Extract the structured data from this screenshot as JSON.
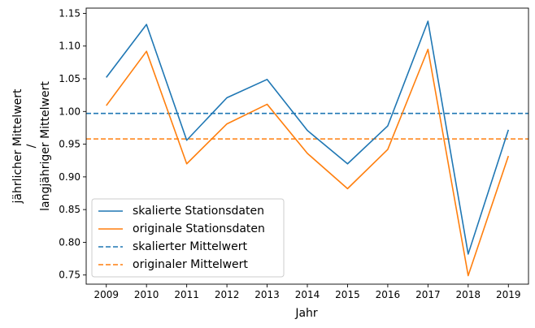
{
  "chart_data": {
    "type": "line",
    "xlabel": "Jahr",
    "ylabel_lines": [
      "jährlicher Mittelwert",
      "/",
      "langjähriger Mittelwert"
    ],
    "x": [
      2009,
      2010,
      2011,
      2012,
      2013,
      2014,
      2015,
      2016,
      2017,
      2018,
      2019
    ],
    "x_ticks": [
      "2009",
      "2010",
      "2011",
      "2012",
      "2013",
      "2014",
      "2015",
      "2016",
      "2017",
      "2018",
      "2019"
    ],
    "y_ticks": [
      "0.75",
      "0.80",
      "0.85",
      "0.90",
      "0.95",
      "1.00",
      "1.05",
      "1.10",
      "1.15"
    ],
    "ylim": [
      0.736,
      1.158
    ],
    "xlim": [
      2008.5,
      2019.5
    ],
    "grid": false,
    "legend_position": "lower-left",
    "series": [
      {
        "name": "skalierte Stationsdaten",
        "style": "solid",
        "color": "#1f77b4",
        "values": [
          1.052,
          1.133,
          0.956,
          1.021,
          1.049,
          0.971,
          0.92,
          0.978,
          1.138,
          0.782,
          0.972
        ]
      },
      {
        "name": "originale Stationsdaten",
        "style": "solid",
        "color": "#ff7f0e",
        "values": [
          1.009,
          1.092,
          0.92,
          0.981,
          1.011,
          0.936,
          0.882,
          0.942,
          1.095,
          0.749,
          0.932
        ]
      }
    ],
    "hlines": [
      {
        "name": "skalierter Mittelwert",
        "style": "dashed",
        "color": "#1f77b4",
        "value": 0.997
      },
      {
        "name": "originaler Mittelwert",
        "style": "dashed",
        "color": "#ff7f0e",
        "value": 0.958
      }
    ]
  }
}
